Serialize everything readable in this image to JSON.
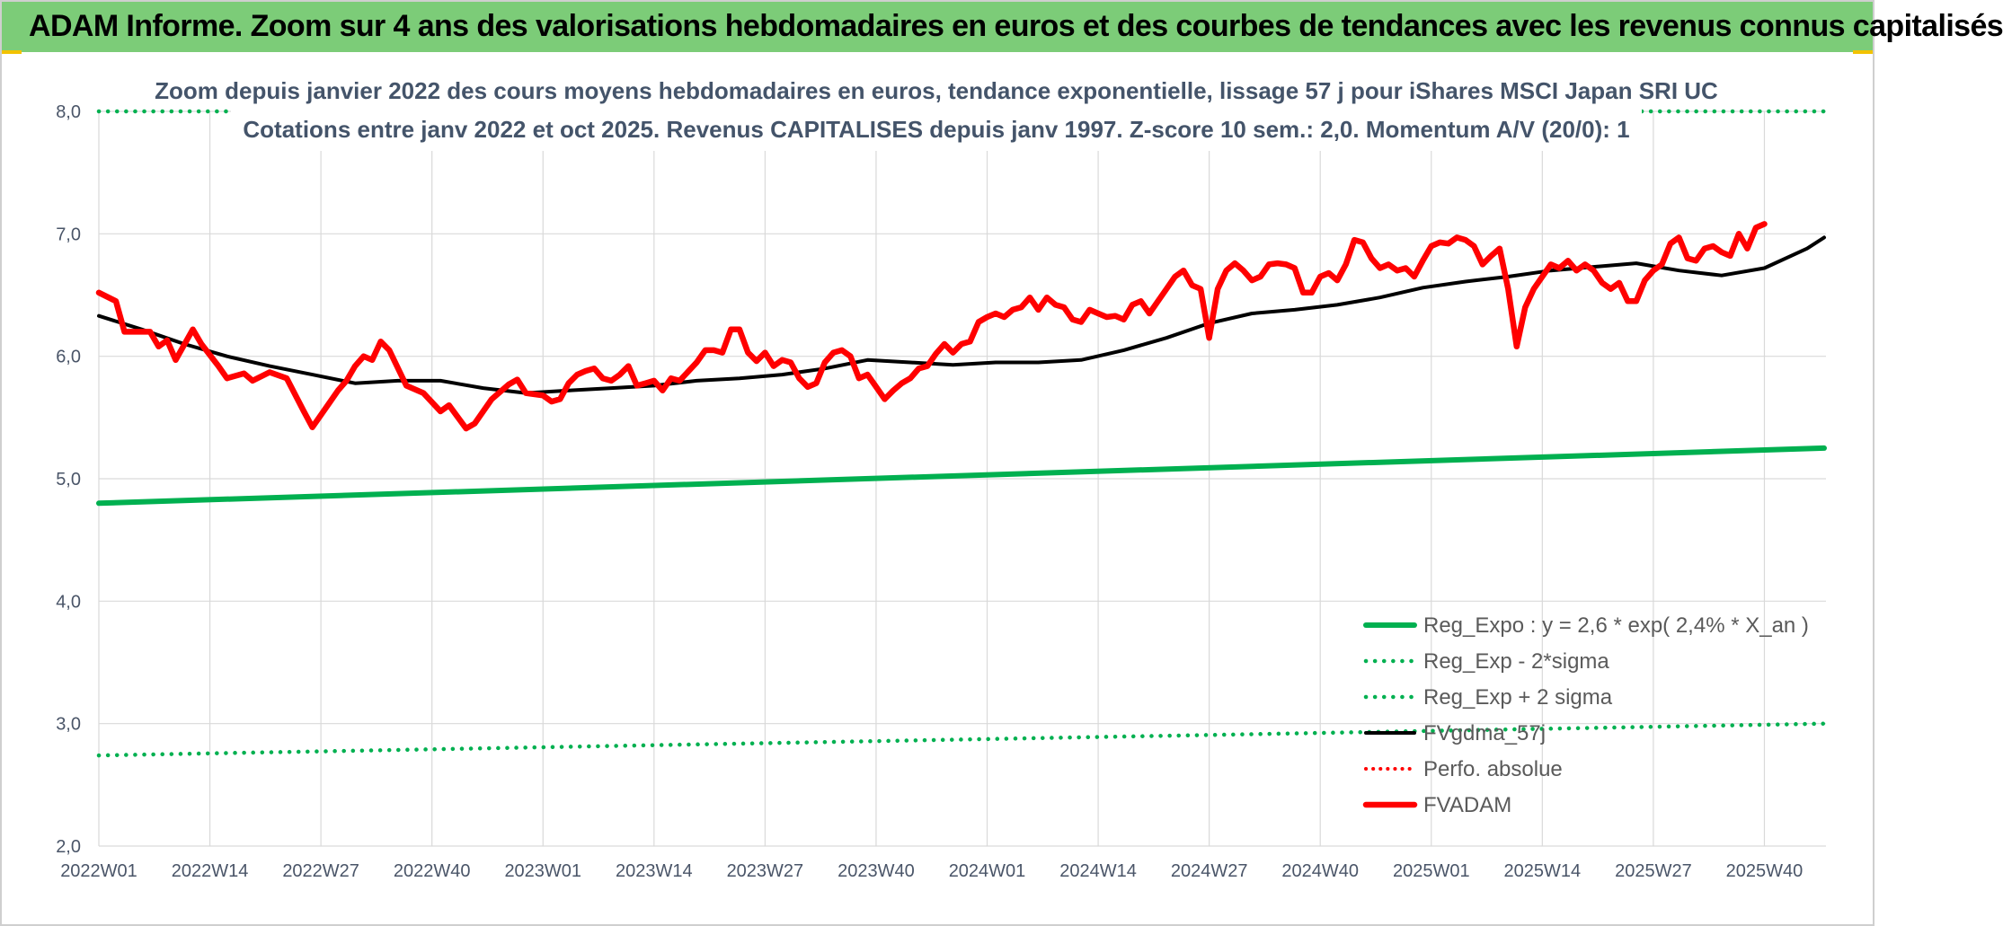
{
  "header": {
    "title": "ADAM Informe. Zoom sur 4 ans des valorisations hebdomadaires en euros et des courbes de tendances avec les revenus connus capitalisés"
  },
  "chart_data": {
    "type": "line",
    "title": "Zoom depuis janvier 2022 des cours moyens hebdomadaires en euros, tendance exponentielle, lissage 57 j pour iShares MSCI Japan SRI UC",
    "subtitle": "Cotations entre janv 2022 et oct 2025. Revenus CAPITALISES depuis janv 1997. Z-score 10 sem.: 2,0. Momentum A/V (20/0): 1",
    "xlabel": "",
    "ylabel": "",
    "ylim": [
      2.0,
      8.0
    ],
    "yticks": [
      "8,0",
      "7,0",
      "6,0",
      "5,0",
      "4,0",
      "3,0",
      "2,0"
    ],
    "ytick_values": [
      8,
      7,
      6,
      5,
      4,
      3,
      2
    ],
    "x_tick_labels": [
      "2022W01",
      "2022W14",
      "2022W27",
      "2022W40",
      "2023W01",
      "2023W14",
      "2023W27",
      "2023W40",
      "2024W01",
      "2024W14",
      "2024W27",
      "2024W40",
      "2025W01",
      "2025W14",
      "2025W27",
      "2025W40"
    ],
    "n_weeks": 203,
    "grid": true,
    "legend_position": "bottom-right",
    "colors": {
      "reg_expo": "#00b050",
      "sigma": "#00b050",
      "fvgdma": "#000000",
      "perfo": "#ff0000",
      "fvadam": "#ff0000",
      "grid": "#d9d9d9"
    },
    "series": [
      {
        "name": "Reg_Expo : y = 2,6 * exp( 2,4% *  X_an )",
        "style": "solid-thick",
        "points": [
          [
            0,
            4.8
          ],
          [
            202,
            5.25
          ]
        ]
      },
      {
        "name": "Reg_Exp - 2*sigma",
        "style": "dotted",
        "points": [
          [
            0,
            2.74
          ],
          [
            202,
            3.0
          ]
        ]
      },
      {
        "name": "Reg_Exp + 2 sigma",
        "style": "dotted",
        "points": [
          [
            0,
            8.0
          ],
          [
            202,
            8.0
          ]
        ]
      },
      {
        "name": "FVgdma_57j",
        "style": "solid",
        "points": [
          [
            0,
            6.33
          ],
          [
            5,
            6.22
          ],
          [
            10,
            6.1
          ],
          [
            15,
            6.0
          ],
          [
            20,
            5.92
          ],
          [
            25,
            5.85
          ],
          [
            30,
            5.78
          ],
          [
            35,
            5.8
          ],
          [
            40,
            5.8
          ],
          [
            45,
            5.74
          ],
          [
            50,
            5.7
          ],
          [
            55,
            5.72
          ],
          [
            60,
            5.74
          ],
          [
            65,
            5.76
          ],
          [
            70,
            5.8
          ],
          [
            75,
            5.82
          ],
          [
            80,
            5.85
          ],
          [
            85,
            5.9
          ],
          [
            90,
            5.97
          ],
          [
            95,
            5.95
          ],
          [
            100,
            5.93
          ],
          [
            105,
            5.95
          ],
          [
            110,
            5.95
          ],
          [
            115,
            5.97
          ],
          [
            120,
            6.05
          ],
          [
            125,
            6.15
          ],
          [
            130,
            6.27
          ],
          [
            135,
            6.35
          ],
          [
            140,
            6.38
          ],
          [
            145,
            6.42
          ],
          [
            150,
            6.48
          ],
          [
            155,
            6.56
          ],
          [
            160,
            6.61
          ],
          [
            165,
            6.65
          ],
          [
            170,
            6.7
          ],
          [
            175,
            6.73
          ],
          [
            180,
            6.76
          ],
          [
            185,
            6.7
          ],
          [
            190,
            6.66
          ],
          [
            195,
            6.72
          ],
          [
            200,
            6.88
          ],
          [
            202,
            6.97
          ]
        ]
      },
      {
        "name": "Perfo. absolue",
        "style": "dotted",
        "points": []
      },
      {
        "name": "FVADAM",
        "style": "solid-thick",
        "points": [
          [
            0,
            6.52
          ],
          [
            2,
            6.45
          ],
          [
            3,
            6.2
          ],
          [
            6,
            6.2
          ],
          [
            7,
            6.08
          ],
          [
            8,
            6.13
          ],
          [
            9,
            5.97
          ],
          [
            11,
            6.22
          ],
          [
            12,
            6.1
          ],
          [
            14,
            5.92
          ],
          [
            15,
            5.82
          ],
          [
            17,
            5.86
          ],
          [
            18,
            5.8
          ],
          [
            20,
            5.87
          ],
          [
            22,
            5.82
          ],
          [
            24,
            5.55
          ],
          [
            25,
            5.42
          ],
          [
            27,
            5.62
          ],
          [
            28,
            5.72
          ],
          [
            29,
            5.8
          ],
          [
            30,
            5.92
          ],
          [
            31,
            6.0
          ],
          [
            32,
            5.97
          ],
          [
            33,
            6.12
          ],
          [
            34,
            6.05
          ],
          [
            36,
            5.76
          ],
          [
            38,
            5.7
          ],
          [
            40,
            5.55
          ],
          [
            41,
            5.6
          ],
          [
            43,
            5.41
          ],
          [
            44,
            5.45
          ],
          [
            46,
            5.65
          ],
          [
            48,
            5.77
          ],
          [
            49,
            5.81
          ],
          [
            50,
            5.7
          ],
          [
            52,
            5.68
          ],
          [
            53,
            5.63
          ],
          [
            54,
            5.65
          ],
          [
            55,
            5.78
          ],
          [
            56,
            5.85
          ],
          [
            57,
            5.88
          ],
          [
            58,
            5.9
          ],
          [
            59,
            5.82
          ],
          [
            60,
            5.8
          ],
          [
            61,
            5.85
          ],
          [
            62,
            5.92
          ],
          [
            63,
            5.76
          ],
          [
            64,
            5.78
          ],
          [
            65,
            5.8
          ],
          [
            66,
            5.72
          ],
          [
            67,
            5.82
          ],
          [
            68,
            5.8
          ],
          [
            70,
            5.95
          ],
          [
            71,
            6.05
          ],
          [
            72,
            6.05
          ],
          [
            73,
            6.03
          ],
          [
            74,
            6.22
          ],
          [
            75,
            6.22
          ],
          [
            76,
            6.03
          ],
          [
            77,
            5.96
          ],
          [
            78,
            6.03
          ],
          [
            79,
            5.92
          ],
          [
            80,
            5.97
          ],
          [
            81,
            5.95
          ],
          [
            82,
            5.82
          ],
          [
            83,
            5.75
          ],
          [
            84,
            5.78
          ],
          [
            85,
            5.95
          ],
          [
            86,
            6.03
          ],
          [
            87,
            6.05
          ],
          [
            88,
            6.0
          ],
          [
            89,
            5.82
          ],
          [
            90,
            5.85
          ],
          [
            91,
            5.75
          ],
          [
            92,
            5.65
          ],
          [
            93,
            5.72
          ],
          [
            94,
            5.78
          ],
          [
            95,
            5.82
          ],
          [
            96,
            5.9
          ],
          [
            97,
            5.92
          ],
          [
            98,
            6.02
          ],
          [
            99,
            6.1
          ],
          [
            100,
            6.03
          ],
          [
            101,
            6.1
          ],
          [
            102,
            6.12
          ],
          [
            103,
            6.28
          ],
          [
            104,
            6.32
          ],
          [
            105,
            6.35
          ],
          [
            106,
            6.32
          ],
          [
            107,
            6.38
          ],
          [
            108,
            6.4
          ],
          [
            109,
            6.48
          ],
          [
            110,
            6.38
          ],
          [
            111,
            6.48
          ],
          [
            112,
            6.42
          ],
          [
            113,
            6.4
          ],
          [
            114,
            6.3
          ],
          [
            115,
            6.28
          ],
          [
            116,
            6.38
          ],
          [
            117,
            6.35
          ],
          [
            118,
            6.32
          ],
          [
            119,
            6.33
          ],
          [
            120,
            6.3
          ],
          [
            121,
            6.42
          ],
          [
            122,
            6.45
          ],
          [
            123,
            6.35
          ],
          [
            124,
            6.45
          ],
          [
            125,
            6.55
          ],
          [
            126,
            6.65
          ],
          [
            127,
            6.7
          ],
          [
            128,
            6.58
          ],
          [
            129,
            6.55
          ],
          [
            130,
            6.15
          ],
          [
            131,
            6.55
          ],
          [
            132,
            6.7
          ],
          [
            133,
            6.76
          ],
          [
            134,
            6.7
          ],
          [
            135,
            6.62
          ],
          [
            136,
            6.65
          ],
          [
            137,
            6.75
          ],
          [
            138,
            6.76
          ],
          [
            139,
            6.75
          ],
          [
            140,
            6.72
          ],
          [
            141,
            6.52
          ],
          [
            142,
            6.52
          ],
          [
            143,
            6.65
          ],
          [
            144,
            6.68
          ],
          [
            145,
            6.62
          ],
          [
            146,
            6.75
          ],
          [
            147,
            6.95
          ],
          [
            148,
            6.93
          ],
          [
            149,
            6.8
          ],
          [
            150,
            6.72
          ],
          [
            151,
            6.75
          ],
          [
            152,
            6.7
          ],
          [
            153,
            6.72
          ],
          [
            154,
            6.65
          ],
          [
            155,
            6.78
          ],
          [
            156,
            6.9
          ],
          [
            157,
            6.93
          ],
          [
            158,
            6.92
          ],
          [
            159,
            6.97
          ],
          [
            160,
            6.95
          ],
          [
            161,
            6.9
          ],
          [
            162,
            6.75
          ],
          [
            163,
            6.82
          ],
          [
            164,
            6.88
          ],
          [
            165,
            6.55
          ],
          [
            166,
            6.08
          ],
          [
            167,
            6.4
          ],
          [
            168,
            6.55
          ],
          [
            169,
            6.65
          ],
          [
            170,
            6.75
          ],
          [
            171,
            6.72
          ],
          [
            172,
            6.78
          ],
          [
            173,
            6.7
          ],
          [
            174,
            6.75
          ],
          [
            175,
            6.7
          ],
          [
            176,
            6.6
          ],
          [
            177,
            6.55
          ],
          [
            178,
            6.6
          ],
          [
            179,
            6.45
          ],
          [
            180,
            6.45
          ],
          [
            181,
            6.62
          ],
          [
            182,
            6.7
          ],
          [
            183,
            6.75
          ],
          [
            184,
            6.92
          ],
          [
            185,
            6.97
          ],
          [
            186,
            6.8
          ],
          [
            187,
            6.78
          ],
          [
            188,
            6.88
          ],
          [
            189,
            6.9
          ],
          [
            190,
            6.85
          ],
          [
            191,
            6.82
          ],
          [
            192,
            7.0
          ],
          [
            193,
            6.88
          ],
          [
            194,
            7.05
          ],
          [
            195,
            7.08
          ]
        ]
      }
    ]
  }
}
